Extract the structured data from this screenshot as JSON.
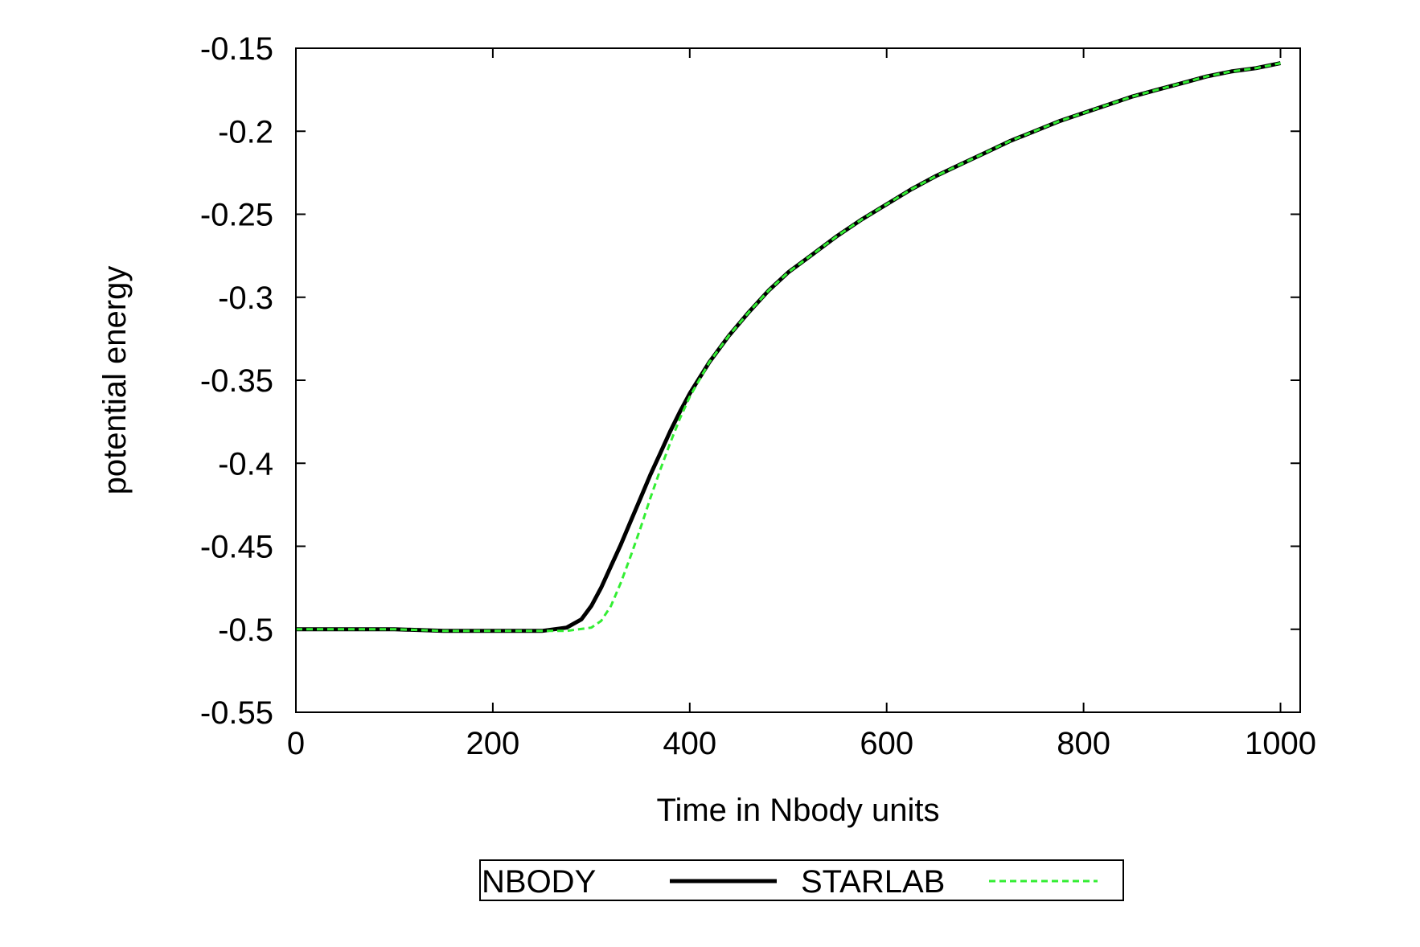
{
  "chart_data": {
    "type": "line",
    "title": "",
    "xlabel": "Time in Nbody units",
    "ylabel": "potential energy",
    "xlim": [
      0,
      1020
    ],
    "ylim": [
      -0.55,
      -0.15
    ],
    "xticks": [
      0,
      200,
      400,
      600,
      800,
      1000
    ],
    "yticks": [
      -0.55,
      -0.5,
      -0.45,
      -0.4,
      -0.35,
      -0.3,
      -0.25,
      -0.2,
      -0.15
    ],
    "xtick_labels": [
      "0",
      "200",
      "400",
      "600",
      "800",
      "1000"
    ],
    "ytick_labels": [
      "-0.55",
      "-0.5",
      "-0.45",
      "-0.4",
      "-0.35",
      "-0.3",
      "-0.25",
      "-0.2",
      "-0.15"
    ],
    "grid": false,
    "legend_position": "bottom",
    "series": [
      {
        "name": "NBODY",
        "color": "#000000",
        "style": "solid",
        "x": [
          0,
          50,
          100,
          150,
          200,
          250,
          275,
          290,
          300,
          310,
          320,
          330,
          340,
          350,
          360,
          370,
          380,
          390,
          400,
          420,
          440,
          460,
          480,
          500,
          525,
          550,
          575,
          600,
          625,
          650,
          675,
          700,
          725,
          750,
          775,
          800,
          825,
          850,
          875,
          900,
          925,
          950,
          975,
          1000
        ],
        "y": [
          -0.5,
          -0.5,
          -0.5,
          -0.501,
          -0.501,
          -0.501,
          -0.499,
          -0.494,
          -0.486,
          -0.475,
          -0.462,
          -0.449,
          -0.435,
          -0.421,
          -0.407,
          -0.394,
          -0.381,
          -0.369,
          -0.358,
          -0.339,
          -0.323,
          -0.309,
          -0.296,
          -0.285,
          -0.274,
          -0.263,
          -0.253,
          -0.244,
          -0.235,
          -0.227,
          -0.22,
          -0.213,
          -0.206,
          -0.2,
          -0.194,
          -0.189,
          -0.184,
          -0.179,
          -0.175,
          -0.171,
          -0.167,
          -0.164,
          -0.162,
          -0.159
        ]
      },
      {
        "name": "STARLAB",
        "color": "#33ee33",
        "style": "dashed",
        "x": [
          0,
          50,
          100,
          150,
          200,
          250,
          275,
          300,
          310,
          320,
          330,
          340,
          350,
          360,
          370,
          380,
          390,
          400,
          420,
          440,
          460,
          480,
          500,
          525,
          550,
          575,
          600,
          625,
          650,
          675,
          700,
          725,
          750,
          775,
          800,
          825,
          850,
          875,
          900,
          925,
          950,
          975,
          1000
        ],
        "y": [
          -0.5,
          -0.5,
          -0.5,
          -0.501,
          -0.501,
          -0.501,
          -0.501,
          -0.499,
          -0.495,
          -0.486,
          -0.472,
          -0.456,
          -0.439,
          -0.421,
          -0.404,
          -0.388,
          -0.373,
          -0.36,
          -0.339,
          -0.323,
          -0.309,
          -0.296,
          -0.285,
          -0.274,
          -0.263,
          -0.253,
          -0.244,
          -0.235,
          -0.227,
          -0.22,
          -0.213,
          -0.206,
          -0.2,
          -0.194,
          -0.189,
          -0.184,
          -0.179,
          -0.175,
          -0.171,
          -0.167,
          -0.164,
          -0.162,
          -0.159
        ]
      }
    ]
  }
}
